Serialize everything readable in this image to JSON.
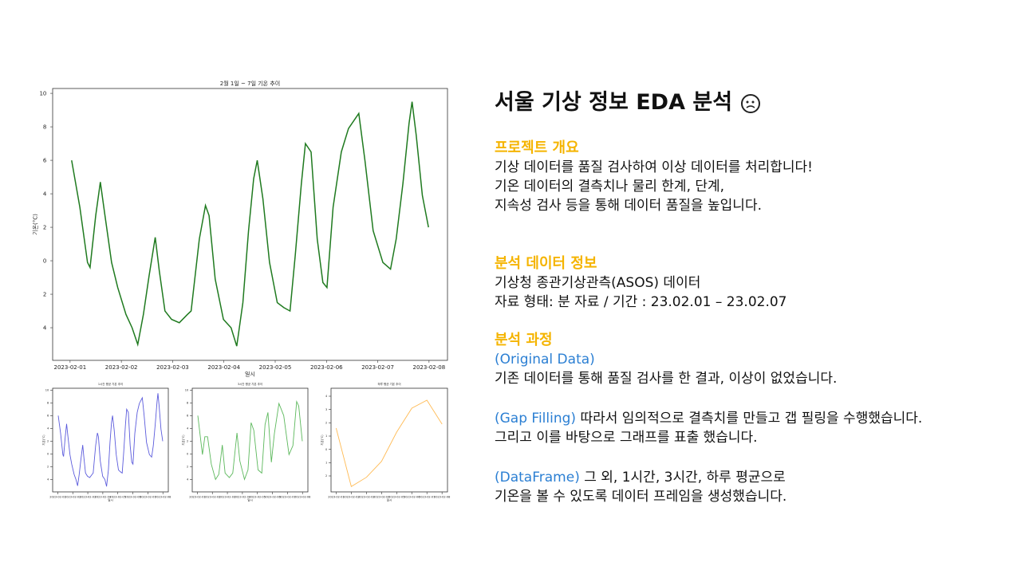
{
  "chart_data": [
    {
      "type": "line",
      "title": "2월 1일 ~ 7일 기온 추이",
      "xlabel": "일시",
      "ylabel": "기온(°C)",
      "xlim": [
        -0.34,
        7.36
      ],
      "ylim": [
        -5.95,
        10.29
      ],
      "xticks": [
        {
          "value": 0,
          "label": "2023-02-01"
        },
        {
          "value": 1,
          "label": "2023-02-02"
        },
        {
          "value": 2,
          "label": "2023-02-03"
        },
        {
          "value": 3,
          "label": "2023-02-04"
        },
        {
          "value": 4,
          "label": "2023-02-05"
        },
        {
          "value": 5,
          "label": "2023-02-06"
        },
        {
          "value": 6,
          "label": "2023-02-07"
        },
        {
          "value": 7,
          "label": "2023-02-08"
        }
      ],
      "yticks": [
        {
          "value": -4,
          "label": "4"
        },
        {
          "value": -2,
          "label": "2"
        },
        0,
        2,
        4,
        6,
        8,
        10
      ],
      "series": [
        {
          "color": "#1f7a1f",
          "x": [
            0.03,
            0.19,
            0.34,
            0.39,
            0.5,
            0.59,
            0.68,
            0.81,
            0.93,
            1.09,
            1.21,
            1.32,
            1.43,
            1.54,
            1.66,
            1.74,
            1.85,
            1.98,
            2.13,
            2.29,
            2.36,
            2.52,
            2.64,
            2.71,
            2.83,
            2.99,
            3.14,
            3.25,
            3.37,
            3.48,
            3.58,
            3.65,
            3.76,
            3.89,
            4.04,
            4.17,
            4.29,
            4.39,
            4.51,
            4.59,
            4.7,
            4.82,
            4.93,
            5.01,
            5.13,
            5.29,
            5.43,
            5.63,
            5.75,
            5.91,
            6.1,
            6.25,
            6.36,
            6.49,
            6.61,
            6.67,
            6.75,
            6.87,
            6.99
          ],
          "values": [
            6.0,
            3.2,
            -0.1,
            -0.4,
            2.7,
            4.7,
            2.7,
            -0.1,
            -1.6,
            -3.2,
            -4.0,
            -5.0,
            -3.2,
            -0.9,
            1.4,
            -0.6,
            -3.0,
            -3.5,
            -3.7,
            -3.2,
            -3.0,
            1.3,
            3.3,
            2.7,
            -1.1,
            -3.5,
            -4.0,
            -5.1,
            -2.5,
            1.8,
            4.9,
            6.0,
            3.7,
            -0.1,
            -2.5,
            -2.8,
            -3.0,
            0.3,
            4.6,
            7.0,
            6.5,
            1.3,
            -1.3,
            -1.6,
            3.2,
            6.5,
            7.9,
            8.8,
            6.0,
            1.8,
            -0.1,
            -0.5,
            1.3,
            4.6,
            8.2,
            9.5,
            7.5,
            3.9,
            2.0
          ]
        }
      ]
    },
    {
      "type": "line",
      "title": "1시간 평균 기온 추이",
      "xlabel": "일시",
      "ylabel": "기온(°C)",
      "xlim": [
        -0.34,
        7.36
      ],
      "ylim": [
        -5.95,
        10.29
      ],
      "xticks": [
        {
          "value": 0,
          "label": "2023-02-01"
        },
        {
          "value": 1,
          "label": "2023-02-02"
        },
        {
          "value": 2,
          "label": "2023-02-03"
        },
        {
          "value": 3,
          "label": "2023-02-04"
        },
        {
          "value": 4,
          "label": "2023-02-05"
        },
        {
          "value": 5,
          "label": "2023-02-06"
        },
        {
          "value": 6,
          "label": "2023-02-07"
        },
        {
          "value": 7,
          "label": "2023-02-08"
        }
      ],
      "yticks": [
        {
          "value": -4,
          "label": "4"
        },
        {
          "value": -2,
          "label": "2"
        },
        0,
        2,
        4,
        6,
        8,
        10
      ],
      "series": [
        {
          "color": "#5b5bdc",
          "x": [
            0.03,
            0.19,
            0.34,
            0.39,
            0.5,
            0.59,
            0.68,
            0.81,
            0.93,
            1.09,
            1.21,
            1.32,
            1.43,
            1.54,
            1.66,
            1.74,
            1.85,
            1.98,
            2.13,
            2.29,
            2.36,
            2.52,
            2.64,
            2.71,
            2.83,
            2.99,
            3.14,
            3.25,
            3.37,
            3.48,
            3.58,
            3.65,
            3.76,
            3.89,
            4.04,
            4.17,
            4.29,
            4.39,
            4.51,
            4.59,
            4.7,
            4.82,
            4.93,
            5.01,
            5.13,
            5.29,
            5.43,
            5.63,
            5.75,
            5.91,
            6.1,
            6.25,
            6.36,
            6.49,
            6.61,
            6.67,
            6.75,
            6.87,
            6.99
          ],
          "values": [
            6.0,
            3.2,
            -0.1,
            -0.4,
            2.7,
            4.7,
            2.7,
            -0.1,
            -1.6,
            -3.2,
            -4.0,
            -5.0,
            -3.2,
            -0.9,
            1.4,
            -0.6,
            -3.0,
            -3.5,
            -3.7,
            -3.2,
            -3.0,
            1.3,
            3.3,
            2.7,
            -1.1,
            -3.5,
            -4.0,
            -5.1,
            -2.5,
            1.8,
            4.9,
            6.0,
            3.7,
            -0.1,
            -2.5,
            -2.8,
            -3.0,
            0.3,
            4.6,
            7.0,
            6.5,
            1.3,
            -1.3,
            -1.6,
            3.2,
            6.5,
            7.9,
            8.8,
            6.0,
            1.8,
            -0.1,
            -0.5,
            1.3,
            4.6,
            8.2,
            9.5,
            7.5,
            3.9,
            2.0
          ]
        }
      ]
    },
    {
      "type": "line",
      "title": "3시간 평균 기온 추이",
      "xlabel": "일시",
      "ylabel": "기온(°C)",
      "xlim": [
        -0.34,
        7.36
      ],
      "ylim": [
        -5.95,
        10.29
      ],
      "xticks": [
        {
          "value": 0,
          "label": "2023-02-01"
        },
        {
          "value": 1,
          "label": "2023-02-02"
        },
        {
          "value": 2,
          "label": "2023-02-03"
        },
        {
          "value": 3,
          "label": "2023-02-04"
        },
        {
          "value": 4,
          "label": "2023-02-05"
        },
        {
          "value": 5,
          "label": "2023-02-06"
        },
        {
          "value": 6,
          "label": "2023-02-07"
        },
        {
          "value": 7,
          "label": "2023-02-08"
        }
      ],
      "yticks": [
        {
          "value": -4,
          "label": "4"
        },
        {
          "value": -2,
          "label": "2"
        },
        0,
        2,
        4,
        6,
        8,
        10
      ],
      "series": [
        {
          "color": "#5cb85c",
          "x": [
            0.03,
            0.34,
            0.5,
            0.68,
            0.93,
            1.21,
            1.43,
            1.66,
            1.85,
            2.13,
            2.36,
            2.64,
            2.83,
            3.14,
            3.37,
            3.58,
            3.76,
            4.04,
            4.29,
            4.51,
            4.7,
            4.93,
            5.13,
            5.43,
            5.75,
            6.1,
            6.36,
            6.61,
            6.75,
            6.99
          ],
          "values": [
            6.0,
            -0.1,
            2.7,
            2.7,
            -1.6,
            -4.0,
            -3.2,
            1.4,
            -3.0,
            -3.7,
            -3.0,
            3.3,
            -1.1,
            -4.0,
            -2.5,
            4.9,
            3.7,
            -2.5,
            -3.0,
            4.6,
            6.5,
            -1.3,
            3.2,
            7.9,
            6.0,
            -0.1,
            1.3,
            8.2,
            7.5,
            2.0
          ]
        }
      ]
    },
    {
      "type": "line",
      "title": "하루 평균 기온 추이",
      "xlabel": "일시",
      "ylabel": "기온(°C)",
      "xlim": [
        -0.34,
        7.36
      ],
      "ylim": [
        -3.2,
        4.6
      ],
      "xticks": [
        {
          "value": 0,
          "label": "2023-02-01"
        },
        {
          "value": 1,
          "label": "2023-02-02"
        },
        {
          "value": 2,
          "label": "2023-02-03"
        },
        {
          "value": 3,
          "label": "2023-02-04"
        },
        {
          "value": 4,
          "label": "2023-02-05"
        },
        {
          "value": 5,
          "label": "2023-02-06"
        },
        {
          "value": 6,
          "label": "2023-02-07"
        },
        {
          "value": 7,
          "label": "2023-02-08"
        }
      ],
      "yticks": [
        {
          "value": -2,
          "label": "2"
        },
        {
          "value": -1,
          "label": "1"
        },
        0,
        1,
        2,
        3,
        4
      ],
      "series": [
        {
          "color": "#ffbb55",
          "x": [
            0,
            1,
            2,
            3,
            4,
            5,
            6,
            7
          ],
          "values": [
            1.6,
            -2.8,
            -2.1,
            -0.9,
            1.3,
            3.1,
            3.7,
            1.9
          ]
        }
      ]
    }
  ],
  "panel": {
    "title": "서울 기상 정보 EDA 분석",
    "sections": [
      {
        "heading": "프로젝트 개요",
        "paragraphs": [
          {
            "lines": [
              "기상 데이터를 품질 검사하여 이상 데이터를 처리합니다!",
              "기온 데이터의 결측치나 물리 한계, 단계,",
              "지속성 검사 등을 통해 데이터 품질을 높입니다."
            ]
          }
        ]
      },
      {
        "heading": "분석 데이터 정보",
        "paragraphs": [
          {
            "lines": [
              "기상청 종관기상관측(ASOS)  데이터",
              "자료 형태: 분 자료 / 기간 : 23.02.01 – 23.02.07"
            ]
          }
        ]
      },
      {
        "heading": "분석 과정",
        "paragraphs": [
          {
            "tag": "(Original Data)",
            "tag_own_line": true,
            "lines": [
              "기존 데이터를 통해 품질 검사를 한 결과, 이상이 없었습니다."
            ]
          },
          {
            "tag": "(Gap Filling)",
            "tag_own_line": false,
            "lines": [
              "따라서 임의적으로 결측치를 만들고 갭 필링을 수행했습니다.",
              "그리고 이를 바탕으로 그래프를 표출 했습니다."
            ]
          },
          {
            "tag": "(DataFrame)",
            "tag_own_line": false,
            "lines": [
              "그 외, 1시간, 3시간, 하루 평균으로",
              "기온을 볼 수 있도록 데이터 프레임을 생성했습니다."
            ]
          }
        ]
      }
    ]
  }
}
